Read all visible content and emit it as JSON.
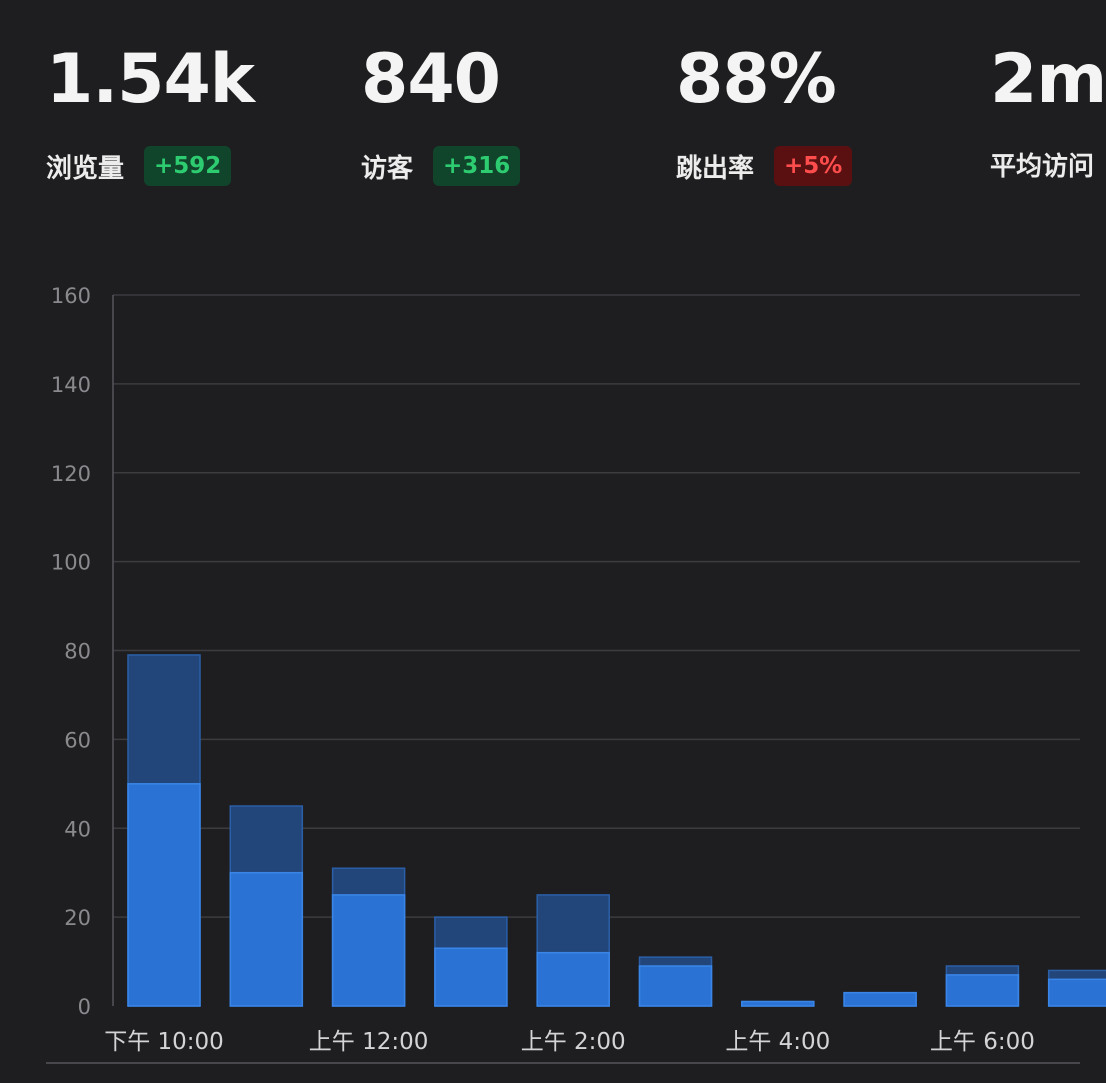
{
  "stats": [
    {
      "value": "1.54k",
      "label": "浏览量",
      "change": "+592",
      "trend": "up"
    },
    {
      "value": "840",
      "label": "访客",
      "change": "+316",
      "trend": "up"
    },
    {
      "value": "88%",
      "label": "跳出率",
      "change": "+5%",
      "trend": "down"
    },
    {
      "value": "2m",
      "label": "平均访问",
      "change": "",
      "trend": ""
    }
  ],
  "colors": {
    "background": "#1e1e20",
    "views_bar": "#22457a",
    "visitors_bar": "#2a73d4",
    "badge_up_bg": "#10452b",
    "badge_up_text": "#2ecc71",
    "badge_down_bg": "#5a1010",
    "badge_down_text": "#ff4d4d"
  },
  "chart_data": {
    "type": "bar",
    "stacking": "overlay",
    "ylim": [
      0,
      160
    ],
    "yticks": [
      0,
      20,
      40,
      60,
      80,
      100,
      120,
      140,
      160
    ],
    "grid": true,
    "title": "",
    "xlabel": "",
    "ylabel": "",
    "x_tick_labels": [
      "下午 10:00",
      "上午 12:00",
      "上午 2:00",
      "上午 4:00",
      "上午 6:00"
    ],
    "x_tick_every": 2,
    "series": [
      {
        "values": [
          79,
          45,
          31,
          20,
          25,
          11,
          1,
          3,
          9,
          8
        ]
      },
      {
        "values": [
          50,
          30,
          25,
          13,
          12,
          9,
          1,
          3,
          7,
          6
        ]
      }
    ]
  }
}
